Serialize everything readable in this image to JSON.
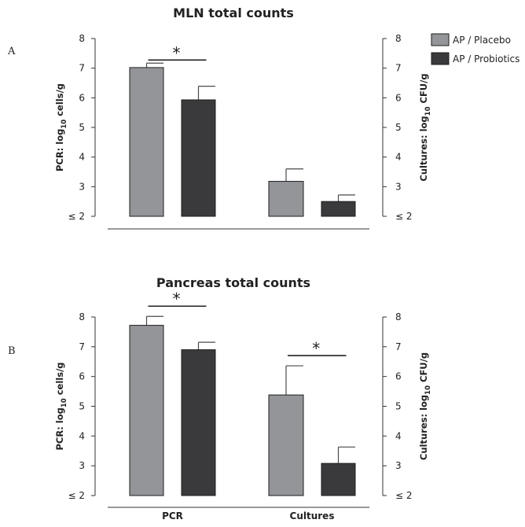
{
  "colors": {
    "placebo": "#939598",
    "probiotics": "#3a3a3c",
    "axis": "#333333",
    "error": "#4a4a4a"
  },
  "legend": {
    "entries": [
      {
        "label": "AP / Placebo",
        "color": "#939598"
      },
      {
        "label": "AP / Probiotics",
        "color": "#3a3a3c"
      }
    ]
  },
  "chart_data": [
    {
      "type": "bar",
      "panel": "A",
      "title": "MLN total counts",
      "categories": [
        "PCR",
        "Cultures"
      ],
      "category_labels_shown": false,
      "ylabel_left": {
        "prefix": "PCR: log",
        "sub": "10",
        "suffix": " cells/g"
      },
      "ylabel_right": {
        "prefix": "Cultures: log",
        "sub": "10",
        "suffix": " CFU/g"
      },
      "ylim": [
        2,
        8
      ],
      "yticks": [
        "≤ 2",
        "3",
        "4",
        "5",
        "6",
        "7",
        "8"
      ],
      "series": [
        {
          "name": "AP / Placebo",
          "values": [
            7.02,
            3.18
          ],
          "errors": [
            0.15,
            0.42
          ]
        },
        {
          "name": "AP / Probiotics",
          "values": [
            5.93,
            2.5
          ],
          "errors": [
            0.46,
            0.22
          ]
        }
      ],
      "significance": [
        {
          "category": "PCR",
          "label": "*"
        }
      ]
    },
    {
      "type": "bar",
      "panel": "B",
      "title": "Pancreas total counts",
      "categories": [
        "PCR",
        "Cultures"
      ],
      "category_labels_shown": true,
      "ylabel_left": {
        "prefix": "PCR: log",
        "sub": "10",
        "suffix": " cells/g"
      },
      "ylabel_right": {
        "prefix": "Cultures: log",
        "sub": "10",
        "suffix": " CFU/g"
      },
      "ylim": [
        2,
        8
      ],
      "yticks": [
        "≤ 2",
        "3",
        "4",
        "5",
        "6",
        "7",
        "8"
      ],
      "series": [
        {
          "name": "AP / Placebo",
          "values": [
            7.72,
            5.38
          ],
          "errors": [
            0.3,
            0.98
          ]
        },
        {
          "name": "AP / Probiotics",
          "values": [
            6.9,
            3.08
          ],
          "errors": [
            0.25,
            0.55
          ]
        }
      ],
      "significance": [
        {
          "category": "PCR",
          "label": "*"
        },
        {
          "category": "Cultures",
          "label": "*"
        }
      ]
    }
  ]
}
